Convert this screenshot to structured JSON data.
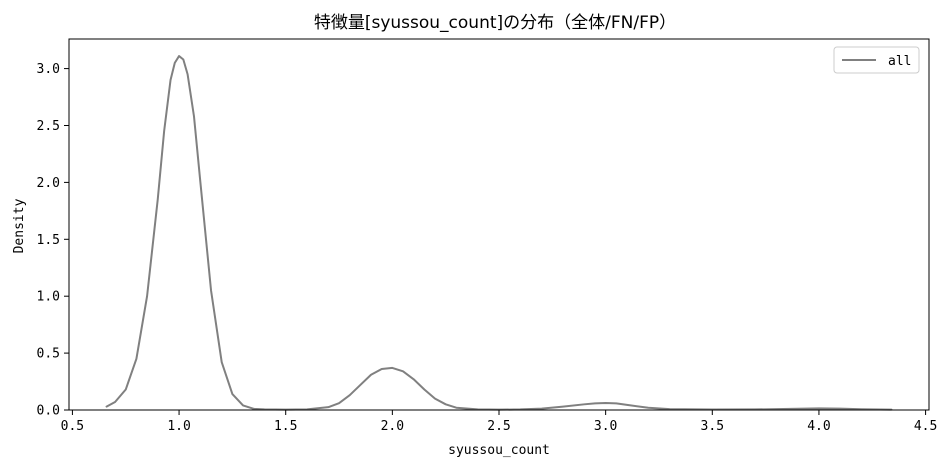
{
  "chart_data": {
    "type": "line",
    "title": "特徴量[syussou_count]の分布（全体/FN/FP）",
    "xlabel": "syussou_count",
    "ylabel": "Density",
    "xlim": [
      0.484,
      4.516
    ],
    "ylim": [
      0,
      3.26
    ],
    "xticks": [
      0.5,
      1.0,
      1.5,
      2.0,
      2.5,
      3.0,
      3.5,
      4.0,
      4.5
    ],
    "xtick_labels": [
      "0.5",
      "1.0",
      "1.5",
      "2.0",
      "2.5",
      "3.0",
      "3.5",
      "4.0",
      "4.5"
    ],
    "yticks": [
      0.0,
      0.5,
      1.0,
      1.5,
      2.0,
      2.5,
      3.0
    ],
    "ytick_labels": [
      "0.0",
      "0.5",
      "1.0",
      "1.5",
      "2.0",
      "2.5",
      "3.0"
    ],
    "grid": false,
    "legend_position": "top-right",
    "series": [
      {
        "name": "all",
        "color": "#808080",
        "x": [
          0.66,
          0.7,
          0.75,
          0.8,
          0.85,
          0.9,
          0.93,
          0.96,
          0.98,
          1.0,
          1.02,
          1.04,
          1.07,
          1.1,
          1.15,
          1.2,
          1.25,
          1.3,
          1.35,
          1.4,
          1.5,
          1.6,
          1.7,
          1.75,
          1.8,
          1.85,
          1.9,
          1.95,
          2.0,
          2.05,
          2.1,
          2.15,
          2.2,
          2.25,
          2.3,
          2.4,
          2.5,
          2.6,
          2.7,
          2.8,
          2.9,
          2.95,
          3.0,
          3.05,
          3.1,
          3.2,
          3.3,
          3.5,
          3.7,
          3.9,
          4.0,
          4.1,
          4.2,
          4.34
        ],
        "y": [
          0.03,
          0.07,
          0.18,
          0.45,
          1.0,
          1.85,
          2.45,
          2.9,
          3.05,
          3.11,
          3.08,
          2.95,
          2.58,
          2.0,
          1.05,
          0.42,
          0.14,
          0.04,
          0.01,
          0.005,
          0.003,
          0.005,
          0.025,
          0.06,
          0.13,
          0.22,
          0.31,
          0.36,
          0.37,
          0.34,
          0.27,
          0.18,
          0.1,
          0.05,
          0.02,
          0.005,
          0.003,
          0.005,
          0.012,
          0.03,
          0.05,
          0.058,
          0.062,
          0.058,
          0.045,
          0.02,
          0.008,
          0.004,
          0.005,
          0.011,
          0.014,
          0.012,
          0.007,
          0.003
        ]
      }
    ]
  }
}
